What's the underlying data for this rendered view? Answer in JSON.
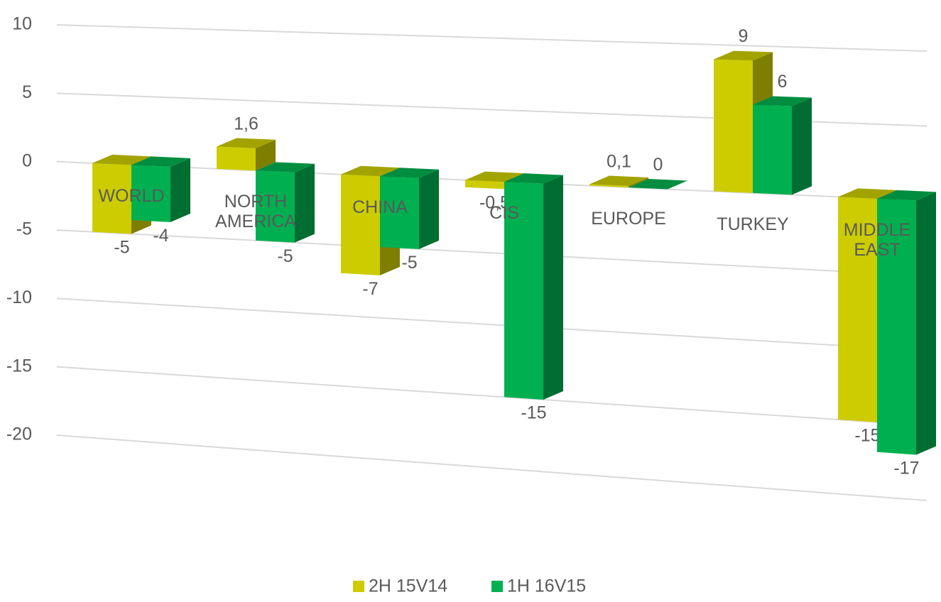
{
  "chart_data": {
    "type": "bar3d",
    "categories": [
      "WORLD",
      "NORTH AMERICA",
      "CHINA",
      "CIS",
      "EUROPE",
      "TURKEY",
      "MIDDLE EAST"
    ],
    "series": [
      {
        "name": "2H 15V14",
        "color": "#cccc00",
        "values": [
          -5,
          1.6,
          -7,
          -0.5,
          0.1,
          9,
          -15
        ],
        "value_labels": [
          "-5",
          "1,6",
          "-7",
          "-0,5",
          "0,1",
          "9",
          "-15"
        ]
      },
      {
        "name": "1H 16V15",
        "color": "#00b050",
        "values": [
          -4,
          -5,
          -5,
          -15,
          0,
          6,
          -17
        ],
        "value_labels": [
          "-4",
          "-5",
          "-5",
          "-15",
          "0",
          "6",
          "-17"
        ]
      }
    ],
    "ylim": [
      -20,
      10
    ],
    "yticks": [
      10,
      5,
      0,
      -5,
      -10,
      -15,
      -20
    ],
    "grid": true,
    "legend": "bottom"
  }
}
